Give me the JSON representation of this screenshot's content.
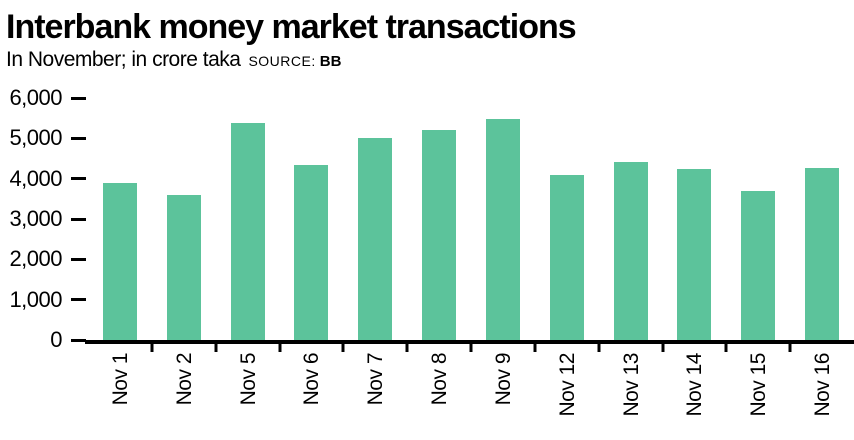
{
  "header": {
    "title": "Interbank money market transactions",
    "subtitle": "In November; in crore taka",
    "source_label": "SOURCE:",
    "source_value": "BB"
  },
  "chart_data": {
    "type": "bar",
    "title": "Interbank money market transactions",
    "subtitle": "In November; in crore taka",
    "source": "BB",
    "categories": [
      "Nov 1",
      "Nov 2",
      "Nov 5",
      "Nov 6",
      "Nov 7",
      "Nov 8",
      "Nov 9",
      "Nov 12",
      "Nov 13",
      "Nov 14",
      "Nov 15",
      "Nov 16"
    ],
    "values": [
      3890,
      3600,
      5380,
      4330,
      5000,
      5210,
      5470,
      4090,
      4420,
      4250,
      3690,
      4260
    ],
    "xlabel": "",
    "ylabel": "",
    "ylim": [
      0,
      6000
    ],
    "y_ticks": [
      0,
      1000,
      2000,
      3000,
      4000,
      5000,
      6000
    ],
    "y_tick_labels": [
      "0",
      "1,000",
      "2,000",
      "3,000",
      "4,000",
      "5,000",
      "6,000"
    ],
    "bar_color": "#5cc39b",
    "axis_color": "#000000",
    "grid": false,
    "legend": false,
    "x_tick_position": "between-categories",
    "x_label_rotation": -90
  }
}
